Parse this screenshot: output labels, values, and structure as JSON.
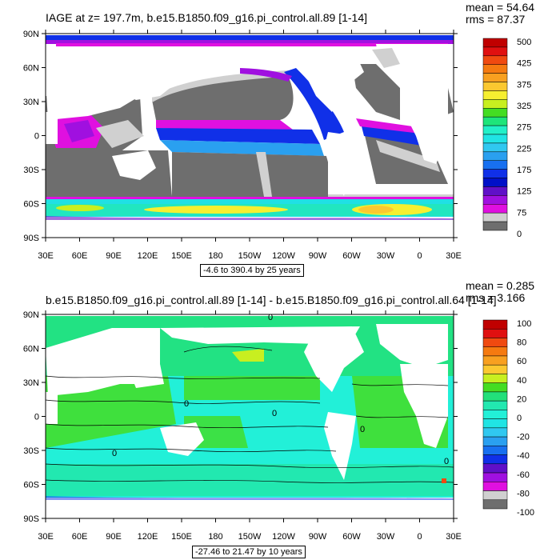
{
  "panels": [
    {
      "title": "IAGE at z= 197.7m, b.e15.B1850.f09_g16.pi_control.all.89 [1-14]",
      "mean": "mean = 54.64",
      "rms": "rms = 87.37",
      "range": "-4.6 to 390.4 by 25 years",
      "colorbar_labels": [
        "500",
        "425",
        "375",
        "325",
        "275",
        "225",
        "175",
        "125",
        "75",
        "0"
      ],
      "colorbar_colors": [
        "#c00000",
        "#e01010",
        "#f04a10",
        "#f57a10",
        "#f8a020",
        "#fbc830",
        "#f6ef30",
        "#c8ef20",
        "#44dd22",
        "#1ee57a",
        "#22f0c8",
        "#20e4e4",
        "#30c8f0",
        "#2aa0f0",
        "#1870f0",
        "#1030e8",
        "#0010c8",
        "#6010c8",
        "#a010e0",
        "#e010e0",
        "#d0d0d0",
        "#6e6e6e"
      ]
    },
    {
      "title": "b.e15.B1850.f09_g16.pi_control.all.89 [1-14] - b.e15.B1850.f09_g16.pi_control.all.64 [1-14]",
      "mean": "mean = 0.285",
      "rms": "rms = 3.166",
      "range": "-27.46 to 21.47 by 10 years",
      "colorbar_labels": [
        "100",
        "80",
        "60",
        "40",
        "20",
        "0",
        "-20",
        "-40",
        "-60",
        "-80",
        "-100"
      ],
      "colorbar_colors": [
        "#c00000",
        "#e01010",
        "#f04a10",
        "#f57a10",
        "#f8a020",
        "#fbc830",
        "#c8ef20",
        "#44dd22",
        "#22e07a",
        "#22e8b0",
        "#22f0d8",
        "#20e4e4",
        "#30c8f0",
        "#2aa0f0",
        "#1870f0",
        "#1030e8",
        "#6010c8",
        "#a010e0",
        "#e010e0",
        "#d0d0d0",
        "#6e6e6e"
      ]
    }
  ],
  "x_ticks": [
    "30E",
    "60E",
    "90E",
    "120E",
    "150E",
    "180",
    "150W",
    "120W",
    "90W",
    "60W",
    "30W",
    "0",
    "30E"
  ],
  "y_ticks": [
    "90N",
    "60N",
    "30N",
    "0",
    "30S",
    "60S",
    "90S"
  ],
  "contour_label": "0"
}
